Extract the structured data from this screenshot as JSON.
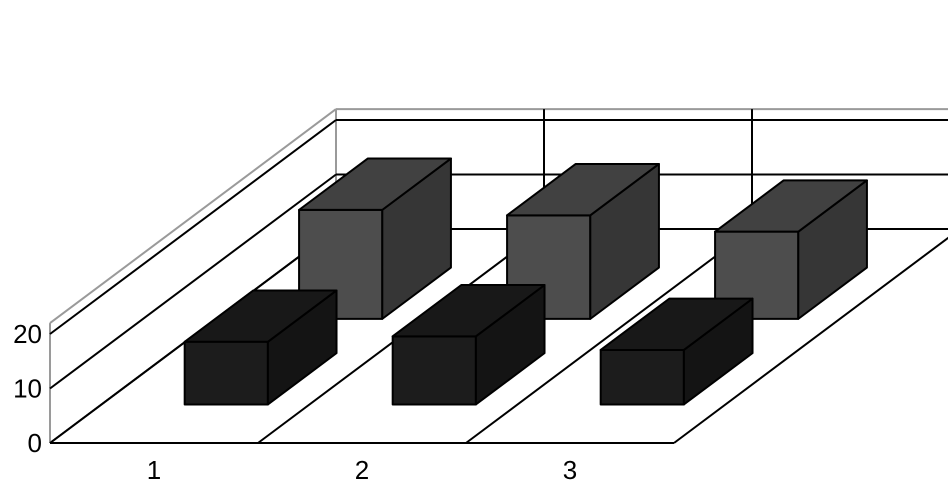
{
  "chart_data": {
    "type": "bar",
    "subtype": "3d-clustered-columns",
    "title": "",
    "xlabel": "",
    "ylabel": "",
    "categories": [
      "1",
      "2",
      "3"
    ],
    "y_ticks": [
      "0",
      "10",
      "20"
    ],
    "ylim": [
      0,
      20
    ],
    "grid": true,
    "legend": "none",
    "series": [
      {
        "values": [
          11.5,
          12.5,
          10
        ],
        "color": "#1c1c1c"
      },
      {
        "values": [
          20,
          19,
          16
        ],
        "color": "#4d4d4d"
      }
    ]
  }
}
